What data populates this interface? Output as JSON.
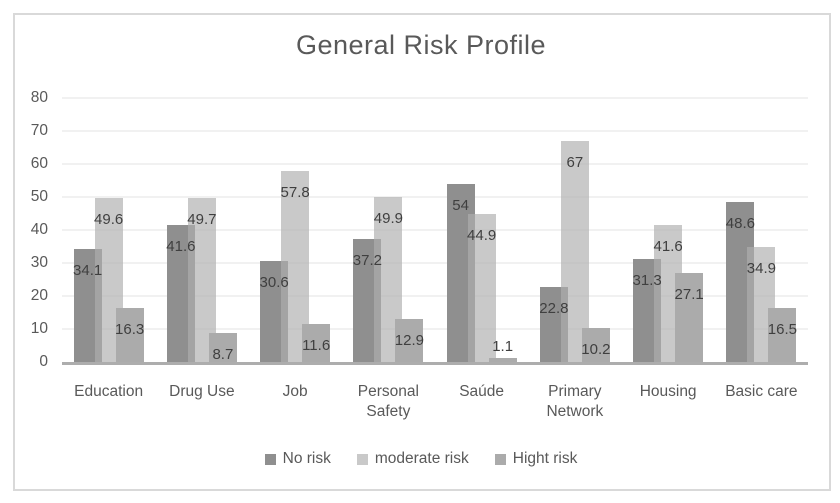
{
  "chart_data": {
    "type": "bar",
    "title": "General Risk Profile",
    "categories": [
      "Education",
      "Drug Use",
      "Job",
      "Personal Safety",
      "Saúde",
      "Primary Network",
      "Housing",
      "Basic care"
    ],
    "series": [
      {
        "name": "No risk",
        "values": [
          34.1,
          41.6,
          30.6,
          37.2,
          54,
          22.8,
          31.3,
          48.6
        ],
        "color": "#8f8f8f",
        "fill": "#8f8f8f"
      },
      {
        "name": "moderate risk",
        "values": [
          49.6,
          49.7,
          57.8,
          49.9,
          44.9,
          67,
          41.6,
          34.9
        ],
        "color": "#c9c9c9",
        "fill": "rgba(174,174,174,0.67)"
      },
      {
        "name": "Hight risk",
        "values": [
          16.3,
          8.7,
          11.6,
          12.9,
          1.1,
          10.2,
          27.1,
          16.5
        ],
        "color": "#ababab",
        "fill": "#ababab"
      }
    ],
    "y_ticks": [
      0,
      10,
      20,
      30,
      40,
      50,
      60,
      70,
      80
    ],
    "ylim": [
      0,
      80
    ],
    "grid": "horizontal",
    "legend_position": "bottom",
    "data_labels": "inside-end",
    "colors": {
      "title_text": "#595959",
      "axis_text": "#595959",
      "label_text": "#3f3f3f",
      "gridline": "#f1f1f1",
      "axis_line": "#adadad",
      "border": "#d9d9d9"
    }
  }
}
